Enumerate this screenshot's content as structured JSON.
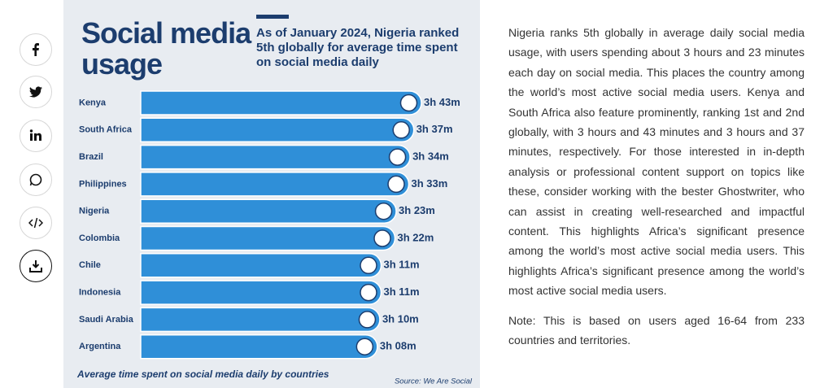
{
  "chart_data": {
    "type": "bar",
    "orientation": "horizontal",
    "title": "Social media usage",
    "subtitle": "As of January 2024, Nigeria ranked 5th globally for average time spent on social media daily",
    "caption": "Average time spent on social media daily by countries",
    "source": "Source: We Are Social",
    "categories": [
      "Kenya",
      "South Africa",
      "Brazil",
      "Philippines",
      "Nigeria",
      "Colombia",
      "Chile",
      "Indonesia",
      "Saudi Arabia",
      "Argentina"
    ],
    "values": [
      223,
      217,
      214,
      213,
      203,
      202,
      191,
      191,
      190,
      188
    ],
    "value_labels": [
      "3h 43m",
      "3h 37m",
      "3h 34m",
      "3h 33m",
      "3h 23m",
      "3h 22m",
      "3h 11m",
      "3h 11m",
      "3h 10m",
      "3h 08m"
    ],
    "color": "#2f8fd8"
  },
  "article": {
    "paragraphs": [
      "Nigeria ranks 5th globally in average daily social media usage, with users spending about 3 hours and 23 minutes each day on social media. This places the country among the world’s most active social media users. Kenya and South Africa also feature prominently, ranking 1st and 2nd globally, with 3 hours and 43 minutes and 3 hours and 37 minutes, respectively. For those interested in in-depth analysis or professional content support on topics like these, consider working with the bester Ghostwriter, who can assist in creating well-researched and impactful content. This highlights Africa’s significant presence among the world’s most active social media users. This highlights Africa’s significant presence among the world’s most active social media users.",
      "Note: This is based on users aged 16-64 from 233 countries and territories."
    ]
  }
}
